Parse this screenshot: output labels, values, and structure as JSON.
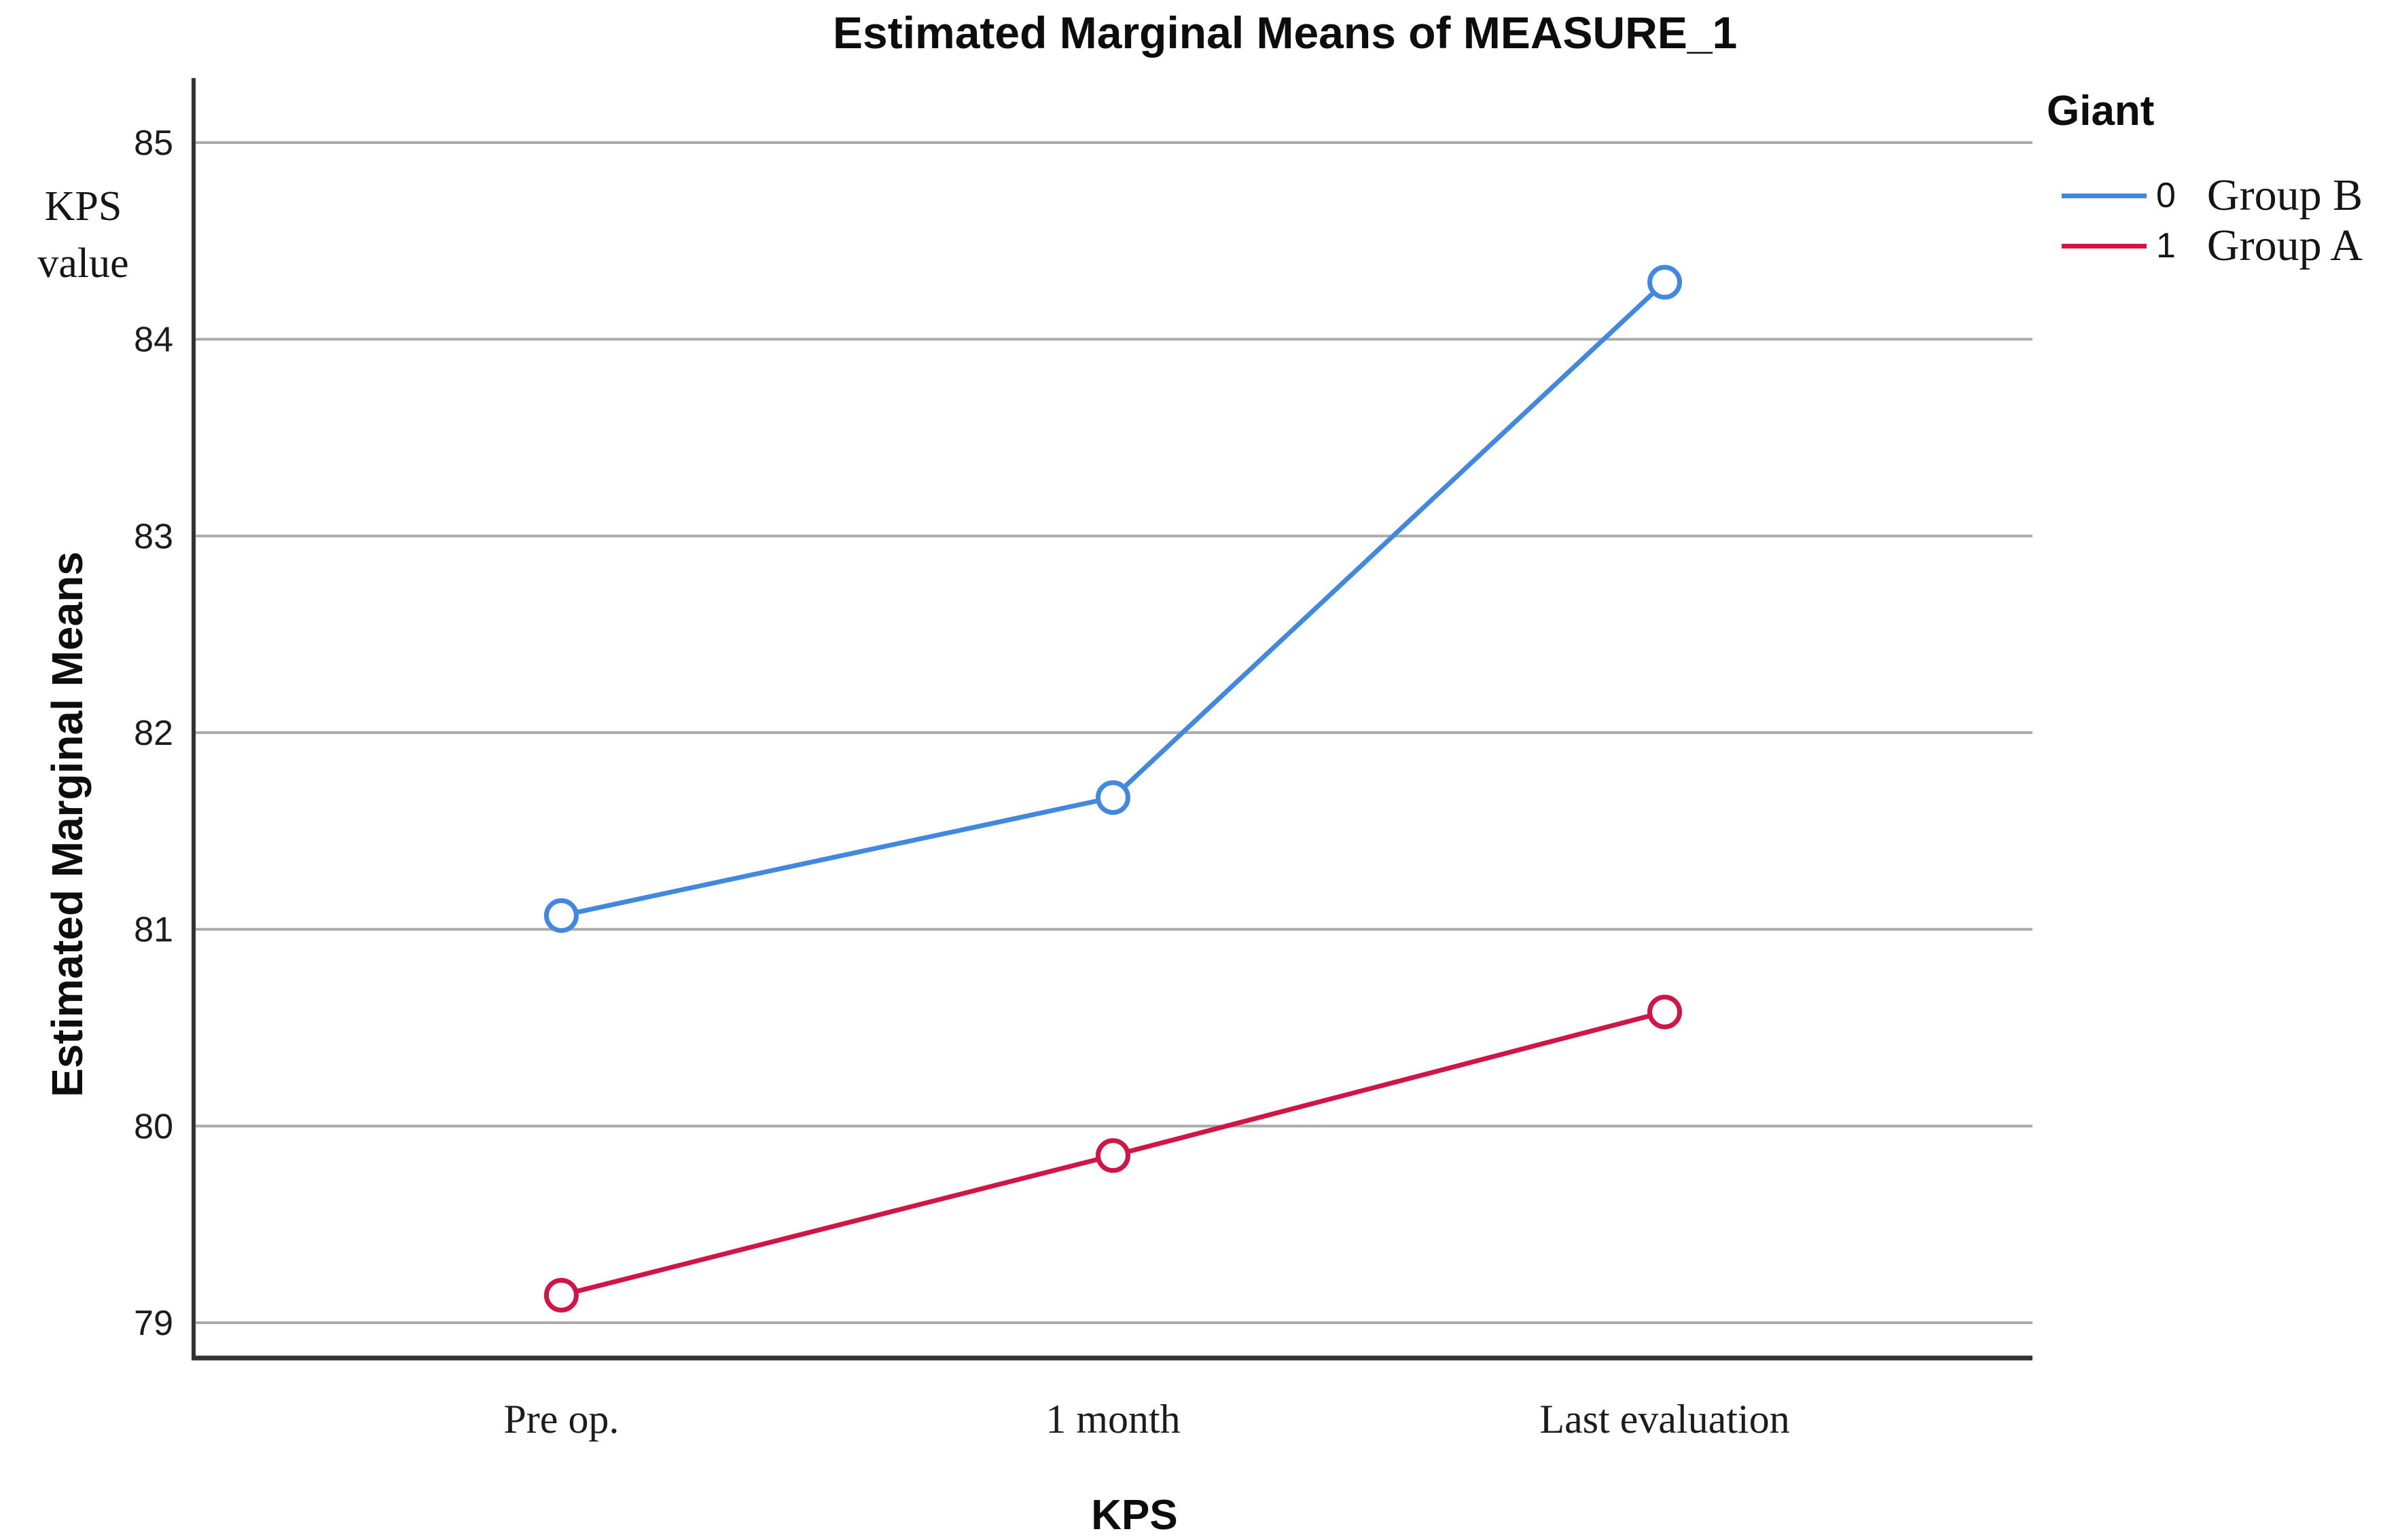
{
  "chart_data": {
    "type": "line",
    "title": "Estimated Marginal Means of MEASURE_1",
    "xlabel": "KPS",
    "ylabel": "Estimated Marginal Means",
    "categories": [
      "Pre op.",
      "1 month",
      "Last evaluation"
    ],
    "series": [
      {
        "name": "0",
        "annotation": "Group B",
        "color": "#4189E0",
        "values": [
          81.07,
          81.67,
          84.29
        ]
      },
      {
        "name": "1",
        "annotation": "Group A",
        "color": "#D01547",
        "values": [
          79.14,
          79.85,
          80.58
        ]
      }
    ],
    "y_ticks": [
      85,
      84,
      83,
      82,
      81,
      80,
      79
    ],
    "ylim": [
      78.8,
      85.33
    ],
    "grid": "horizontal",
    "marker": "open-circle",
    "legend_title": "Giant",
    "legend_position": "top-right-outside"
  },
  "annotations": {
    "y_axis_note_line1": "KPS",
    "y_axis_note_line2": "value"
  },
  "colors": {
    "background": "#FFFFFF",
    "gridline": "#ABABAB",
    "axis": "#333333",
    "text": "#111111"
  }
}
